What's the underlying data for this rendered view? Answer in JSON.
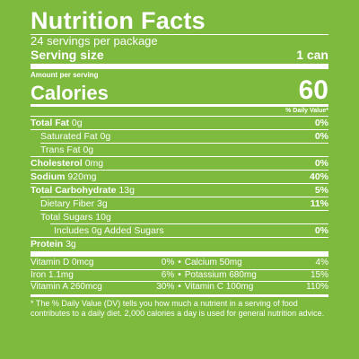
{
  "label": {
    "title": "Nutrition Facts",
    "servings_per_package": "24 servings per package",
    "serving_size_label": "Serving size",
    "serving_size_value": "1 can",
    "amount_per_serving": "Amount per serving",
    "calories_label": "Calories",
    "calories_value": "60",
    "dv_header": "% Daily Value*",
    "nutrients": [
      {
        "name": "Total Fat",
        "amount": "0g",
        "dv": "0%"
      },
      {
        "name": "Saturated Fat",
        "amount": "0g",
        "dv": "0%"
      },
      {
        "name": "Trans Fat",
        "amount": "0g",
        "dv": ""
      },
      {
        "name": "Cholesterol",
        "amount": "0mg",
        "dv": "0%"
      },
      {
        "name": "Sodium",
        "amount": "920mg",
        "dv": "40%"
      },
      {
        "name": "Total Carbohydrate",
        "amount": "13g",
        "dv": "5%"
      },
      {
        "name": "Dietary Fiber",
        "amount": "3g",
        "dv": "11%"
      },
      {
        "name": "Total Sugars",
        "amount": "10g",
        "dv": ""
      },
      {
        "name": "Includes 0g Added Sugars",
        "amount": "",
        "dv": "0%"
      },
      {
        "name": "Protein",
        "amount": "3g",
        "dv": ""
      }
    ],
    "vitamins": [
      {
        "left_name": "Vitamin D 0mcg",
        "left_dv": "0%",
        "right_name": "Calcium 50mg",
        "right_dv": "4%"
      },
      {
        "left_name": "Iron 1.1mg",
        "left_dv": "6%",
        "right_name": "Potassium 680mg",
        "right_dv": "15%"
      },
      {
        "left_name": "Vitamin A 260mcg",
        "left_dv": "30%",
        "right_name": "Vitamin C 100mg",
        "right_dv": "110%"
      }
    ],
    "bullet": "•",
    "footnote": "* The % Daily Value (DV) tells you how much a nutrient in a serving of food contributes to a daily diet. 2,000 calories a day is used for general nutrition advice."
  },
  "colors": {
    "background": "#7dba3e",
    "text": "#ffffff"
  }
}
